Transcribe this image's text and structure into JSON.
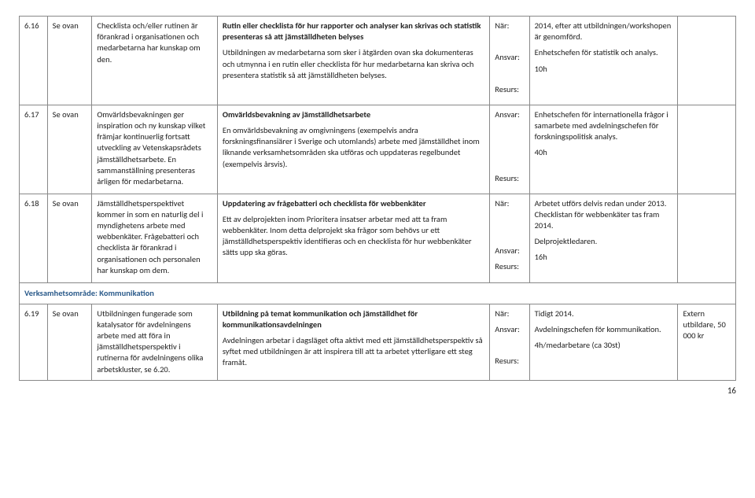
{
  "labels": {
    "nar": "När:",
    "ansvar": "Ansvar:",
    "resurs": "Resurs:"
  },
  "section_title": "Verksamhetsområde: Kommunikation",
  "page_number": "16",
  "rows": [
    {
      "id": "6.16",
      "ref": "Se ovan",
      "col3": "Checklista och/eller rutinen är förankrad i organisationen och medarbetarna har kunskap om den.",
      "col4_title": "Rutin eller checklista för hur rapporter och analyser kan skrivas och statistik presenteras så att jämställdheten belyses",
      "col4_body": "Utbildningen av medarbetarna som sker i åtgärden ovan ska dokumenteras och utmynna i en rutin eller checklista för hur medarbetarna kan skriva och presentera statistik så att jämställdheten belyses.",
      "nar": "2014, efter att utbildningen/workshopen är genomförd.",
      "ansvar": "Enhetschefen för statistik och analys.",
      "resurs": "10h",
      "col7": ""
    },
    {
      "id": "6.17",
      "ref": "Se ovan",
      "col3": "Omvärldsbevakningen ger inspiration och ny kunskap vilket främjar kontinuerlig fortsatt utveckling av Vetenskapsrådets jämställdhetsarbete. En sammanställning presenteras årligen för medarbetarna.",
      "col4_title": "Omvärldsbevakning av jämställdhetsarbete",
      "col4_body": "En omvärldsbevakning av omgivningens (exempelvis andra forskningsfinansiärer i Sverige och utomlands) arbete med jämställdhet inom liknande verksamhetsområden ska utföras och uppdateras regelbundet (exempelvis årsvis).",
      "nar": "",
      "ansvar": "Enhetschefen för internationella frågor i samarbete med avdelningschefen för forskningspolitisk analys.",
      "resurs": "40h",
      "col7": ""
    },
    {
      "id": "6.18",
      "ref": "Se ovan",
      "col3": "Jämställdhetsperspektivet kommer in som en naturlig del i myndighetens arbete med webbenkäter. Frågebatteri och checklista är förankrad i organisationen och personalen har kunskap om dem.",
      "col4_title": "Uppdatering av frågebatteri och checklista för webbenkäter",
      "col4_body": "Ett av delprojekten inom Prioritera insatser arbetar med att ta fram webbenkäter. Inom detta delprojekt ska frågor som behövs ur ett jämställdhetsperspektiv identifieras och en checklista för hur webbenkäter sätts upp ska göras.",
      "nar": "Arbetet utförs delvis redan under 2013. Checklistan för webbenkäter tas fram 2014.",
      "ansvar": "Delprojektledaren.",
      "resurs": "16h",
      "col7": ""
    },
    {
      "id": "6.19",
      "ref": "Se ovan",
      "col3": "Utbildningen fungerade som katalysator för avdelningens arbete med att föra in jämställdhetsperspektiv i rutinerna för avdelningens olika arbetskluster, se 6.20.",
      "col4_title": "Utbildning på temat kommunikation och jämställdhet för kommunikationsavdelningen",
      "col4_body": "Avdelningen arbetar i dagsläget ofta aktivt med ett jämställdhetsperspektiv så syftet med utbildningen är att inspirera till att ta arbetet ytterligare ett steg framåt.",
      "nar": "Tidigt 2014.",
      "ansvar": "Avdelningschefen för kommunikation.",
      "resurs": "4h/medarbetare (ca 30st)",
      "col7": "Extern utbildare, 50 000 kr"
    }
  ]
}
